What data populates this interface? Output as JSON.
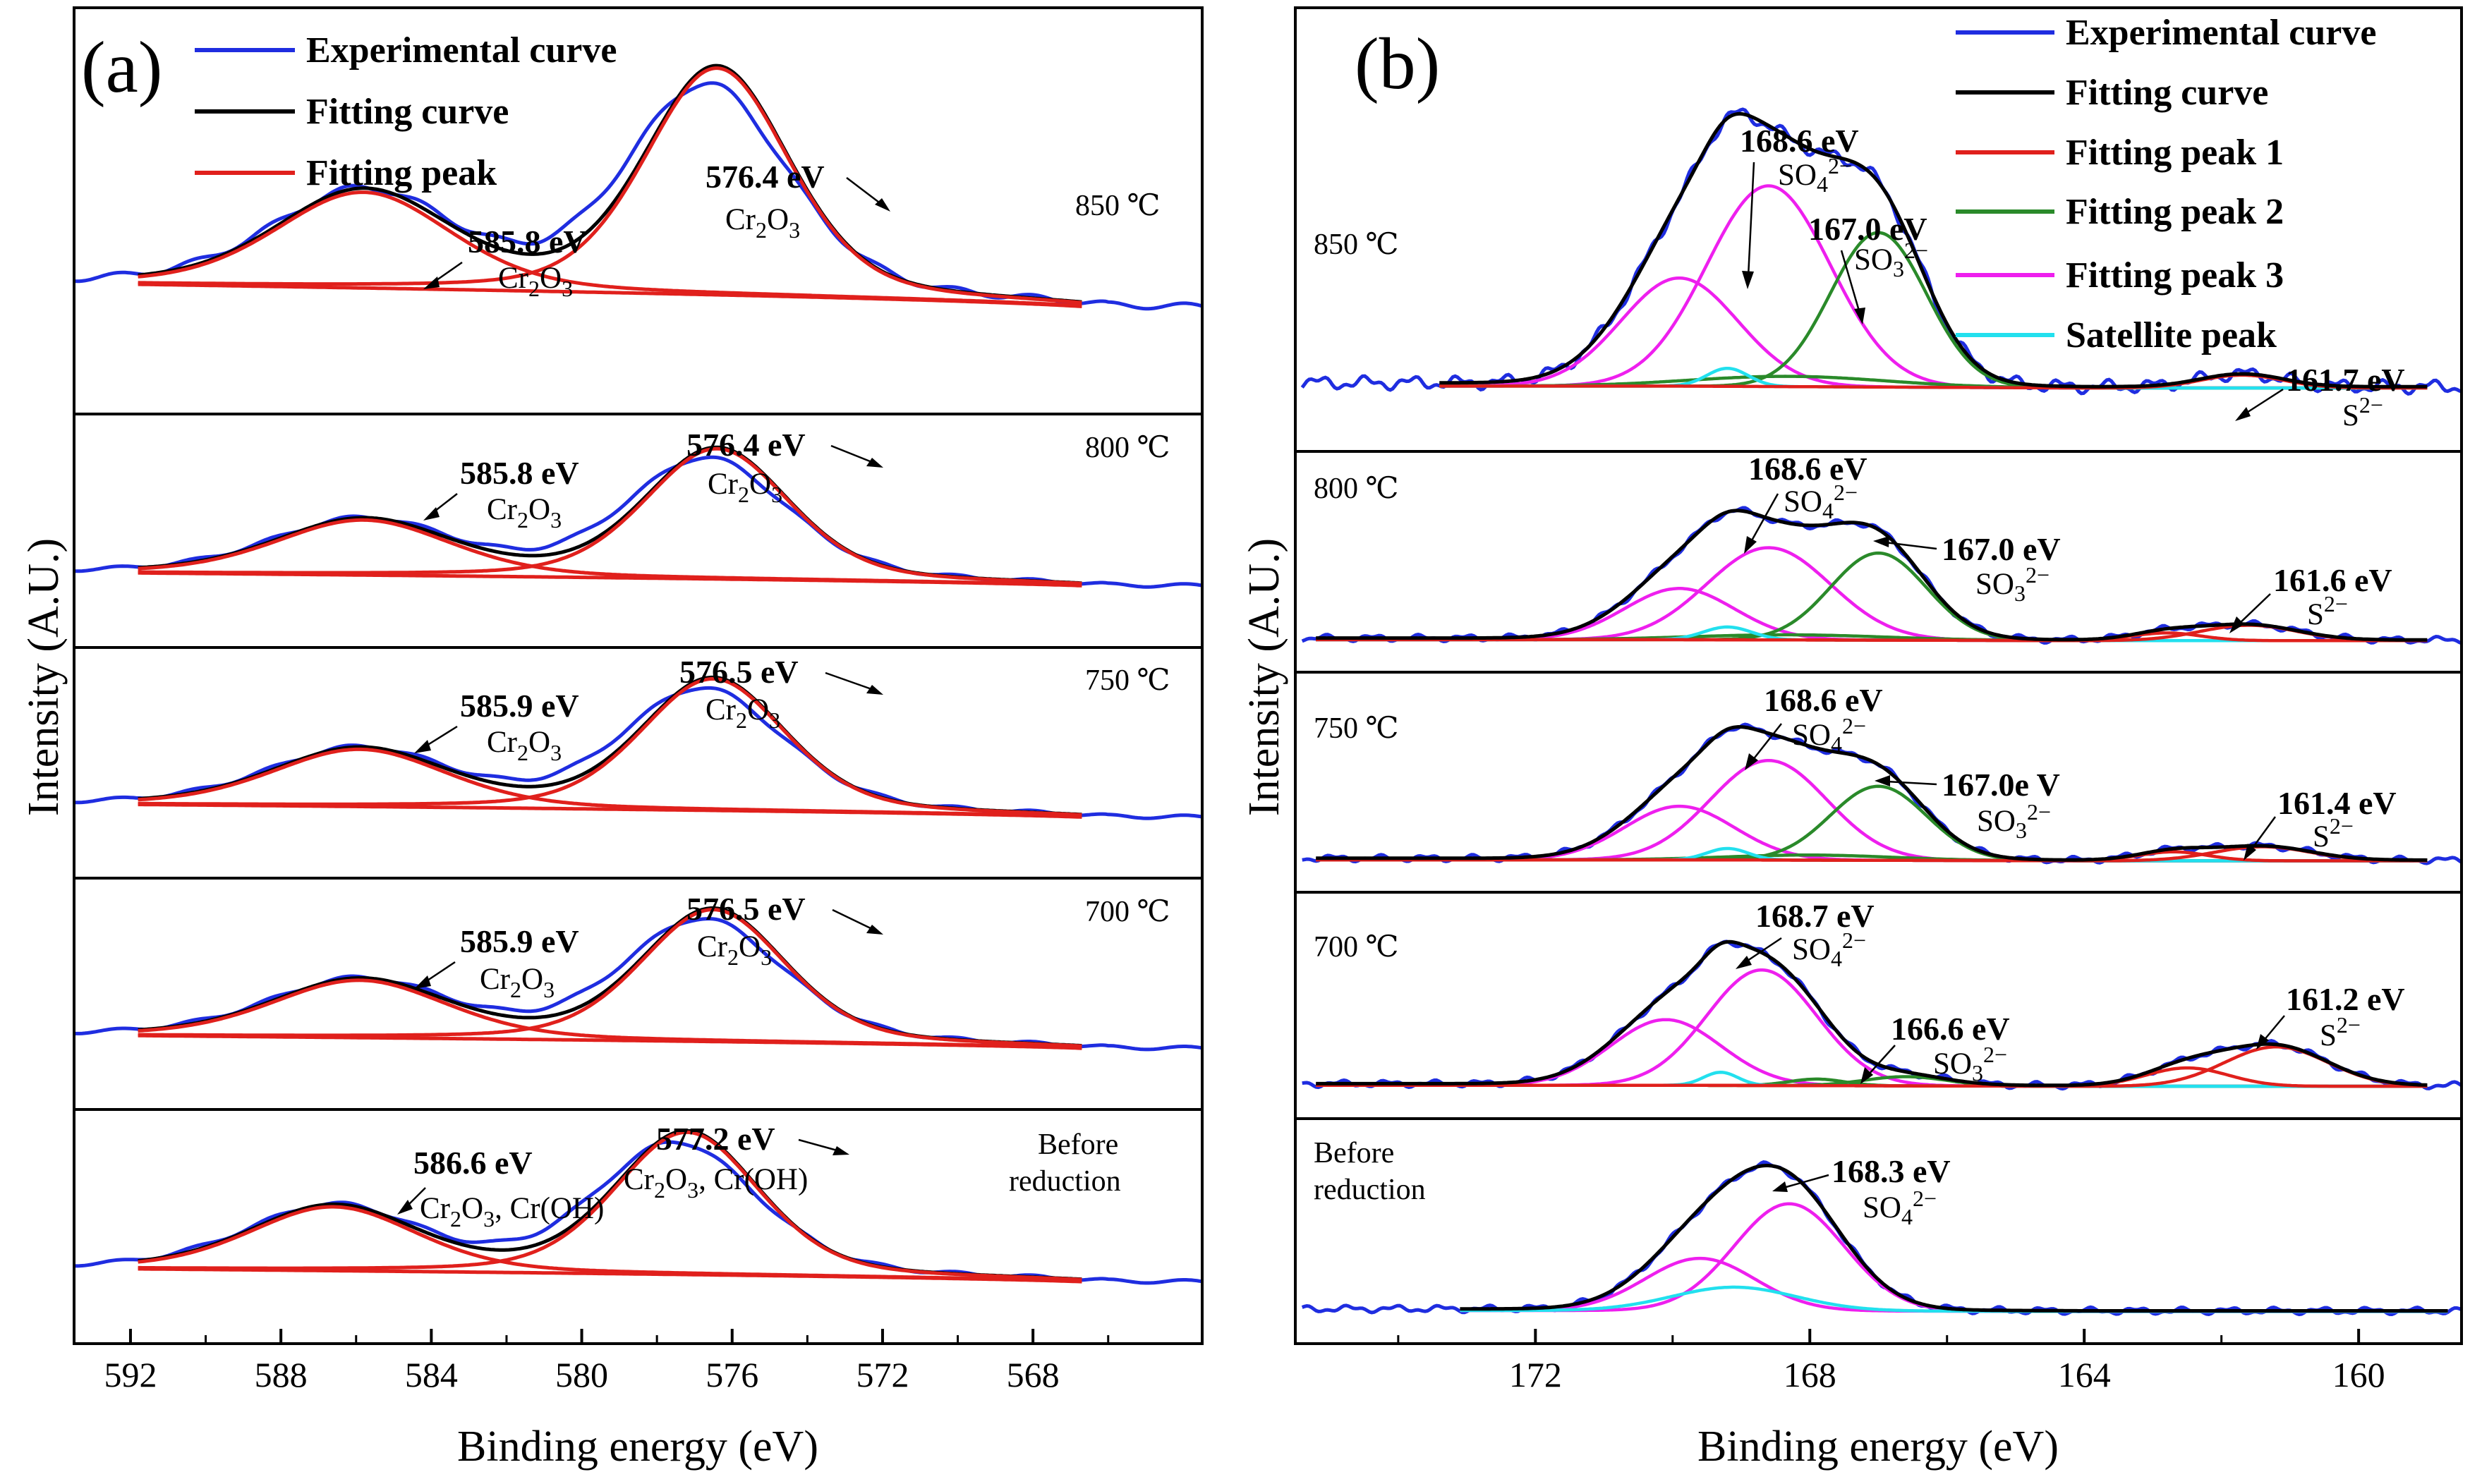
{
  "chart_data": [
    {
      "type": "line",
      "panel_label": "(a)",
      "xlabel": "Binding energy (eV)",
      "ylabel": "Intensity (A.U.)",
      "xlim": [
        593.5,
        563.5
      ],
      "xticks": [
        592,
        588,
        584,
        580,
        576,
        572,
        568
      ],
      "legend": [
        "Experimental curve",
        "Fitting curve",
        "Fitting peak"
      ],
      "colors": {
        "experimental": "#1f2de0",
        "fitting": "#000000",
        "peak": "#e0201c"
      },
      "fit_range": [
        591.8,
        566.7
      ],
      "exp_range": [
        593.5,
        563.5
      ],
      "spectra": [
        {
          "condition": "850 ℃",
          "peaks": [
            {
              "label": "585.8 eV",
              "species": "Cr2O3",
              "center": 585.8,
              "height": 0.38,
              "width": 2.3
            },
            {
              "label": "576.4 eV",
              "species": "Cr2O3",
              "center": 576.4,
              "height": 0.9,
              "width": 1.9
            }
          ],
          "exp_offset": -0.3
        },
        {
          "condition": "800 ℃",
          "peaks": [
            {
              "label": "585.8 eV",
              "species": "Cr2O3",
              "center": 585.8,
              "height": 0.38,
              "width": 2.3
            },
            {
              "label": "576.4 eV",
              "species": "Cr2O3",
              "center": 576.4,
              "height": 0.9,
              "width": 1.9
            }
          ],
          "exp_offset": -0.3
        },
        {
          "condition": "750 ℃",
          "peaks": [
            {
              "label": "585.9 eV",
              "species": "Cr2O3",
              "center": 585.9,
              "height": 0.4,
              "width": 2.3
            },
            {
              "label": "576.5 eV",
              "species": "Cr2O3",
              "center": 576.5,
              "height": 0.92,
              "width": 1.9
            }
          ],
          "exp_offset": -0.3
        },
        {
          "condition": "700 ℃",
          "peaks": [
            {
              "label": "585.9 eV",
              "species": "Cr2O3",
              "center": 585.9,
              "height": 0.4,
              "width": 2.3
            },
            {
              "label": "576.5 eV",
              "species": "Cr2O3",
              "center": 576.5,
              "height": 0.92,
              "width": 1.9
            }
          ],
          "exp_offset": -0.3
        },
        {
          "condition": "Before reduction",
          "peaks": [
            {
              "label": "586.6 eV",
              "species": "Cr2O3, Cr(OH)",
              "center": 586.6,
              "height": 0.44,
              "width": 2.2
            },
            {
              "label": "577.2 eV",
              "species": "Cr2O3, Cr(OH)",
              "center": 577.2,
              "height": 0.98,
              "width": 1.9
            }
          ],
          "exp_offset": -0.3
        }
      ]
    },
    {
      "type": "line",
      "panel_label": "(b)",
      "xlabel": "Binding energy (eV)",
      "ylabel": "Intensity (A.U.)",
      "xlim": [
        175.5,
        158.5
      ],
      "xticks": [
        172,
        168,
        164,
        160
      ],
      "legend": [
        "Experimental curve",
        "Fitting curve",
        "Fitting peak 1",
        "Fitting peak 2",
        "Fitting peak 3",
        "Satellite peak"
      ],
      "colors": {
        "experimental": "#1f2de0",
        "fitting": "#000000",
        "peak1": "#e0201c",
        "peak2": "#2a8a2a",
        "peak3": "#ee1fee",
        "satellite": "#22e0ee"
      },
      "spectra": [
        {
          "condition": "850 ℃",
          "fit_range": [
            173.4,
            159.0
          ],
          "peaks": [
            {
              "type": "peak3",
              "center": 168.6,
              "height": 0.78,
              "width": 0.9
            },
            {
              "type": "peak3",
              "center": 169.9,
              "height": 0.42,
              "width": 0.85
            },
            {
              "type": "peak2",
              "center": 167.0,
              "height": 0.6,
              "width": 0.7
            },
            {
              "type": "peak2",
              "center": 168.3,
              "height": 0.04,
              "width": 1.4
            },
            {
              "type": "satellite",
              "center": 169.2,
              "height": 0.07,
              "width": 0.3
            },
            {
              "type": "peak1",
              "center": 161.7,
              "height": 0.05,
              "width": 0.6
            }
          ],
          "annotations": [
            {
              "label": "168.6 eV",
              "species": "SO4 2−"
            },
            {
              "label": "167.0 eV",
              "species": "SO3 2−"
            },
            {
              "label": "161.7 eV",
              "species": "S2−"
            }
          ]
        },
        {
          "condition": "800 ℃",
          "fit_range": [
            175.2,
            159.0
          ],
          "peaks": [
            {
              "type": "peak3",
              "center": 168.6,
              "height": 0.72,
              "width": 0.9
            },
            {
              "type": "peak3",
              "center": 169.9,
              "height": 0.4,
              "width": 0.8
            },
            {
              "type": "peak2",
              "center": 167.0,
              "height": 0.68,
              "width": 0.7
            },
            {
              "type": "peak2",
              "center": 168.3,
              "height": 0.04,
              "width": 1.4
            },
            {
              "type": "satellite",
              "center": 169.2,
              "height": 0.1,
              "width": 0.35
            },
            {
              "type": "peak1",
              "center": 161.6,
              "height": 0.12,
              "width": 0.7
            },
            {
              "type": "peak1",
              "center": 162.8,
              "height": 0.06,
              "width": 0.5
            }
          ],
          "annotations": [
            {
              "label": "168.6 eV",
              "species": "SO4 2−"
            },
            {
              "label": "167.0 eV",
              "species": "SO3 2−"
            },
            {
              "label": "161.6 eV",
              "species": "S2−"
            }
          ]
        },
        {
          "condition": "750 ℃",
          "fit_range": [
            175.2,
            159.0
          ],
          "peaks": [
            {
              "type": "peak3",
              "center": 168.6,
              "height": 0.78,
              "width": 0.85
            },
            {
              "type": "peak3",
              "center": 169.9,
              "height": 0.42,
              "width": 0.8
            },
            {
              "type": "peak2",
              "center": 167.0,
              "height": 0.58,
              "width": 0.7
            },
            {
              "type": "peak2",
              "center": 168.0,
              "height": 0.04,
              "width": 1.2
            },
            {
              "type": "satellite",
              "center": 169.2,
              "height": 0.09,
              "width": 0.3
            },
            {
              "type": "peak1",
              "center": 161.4,
              "height": 0.11,
              "width": 0.7
            },
            {
              "type": "peak1",
              "center": 162.7,
              "height": 0.07,
              "width": 0.5
            }
          ],
          "annotations": [
            {
              "label": "168.6 eV",
              "species": "SO4 2−"
            },
            {
              "label": "167.0e V",
              "species": "SO3 2−"
            },
            {
              "label": "161.4 eV",
              "species": "S2−"
            }
          ]
        },
        {
          "condition": "700 ℃",
          "fit_range": [
            175.2,
            159.0
          ],
          "peaks": [
            {
              "type": "peak3",
              "center": 168.7,
              "height": 0.88,
              "width": 0.8
            },
            {
              "type": "peak3",
              "center": 170.1,
              "height": 0.5,
              "width": 0.8
            },
            {
              "type": "peak2",
              "center": 166.6,
              "height": 0.07,
              "width": 0.6
            },
            {
              "type": "peak2",
              "center": 167.9,
              "height": 0.05,
              "width": 0.4
            },
            {
              "type": "satellite",
              "center": 169.3,
              "height": 0.1,
              "width": 0.25
            },
            {
              "type": "peak1",
              "center": 161.2,
              "height": 0.3,
              "width": 0.75
            },
            {
              "type": "peak1",
              "center": 162.5,
              "height": 0.14,
              "width": 0.6
            }
          ],
          "annotations": [
            {
              "label": "168.7 eV",
              "species": "SO4 2−"
            },
            {
              "label": "166.6 eV",
              "species": "SO3 2−"
            },
            {
              "label": "161.2 eV",
              "species": "S2−"
            }
          ]
        },
        {
          "condition": "Before reduction",
          "fit_range": [
            173.1,
            158.7
          ],
          "peaks": [
            {
              "type": "peak3",
              "center": 168.3,
              "height": 0.82,
              "width": 0.8
            },
            {
              "type": "peak3",
              "center": 169.6,
              "height": 0.4,
              "width": 0.8
            },
            {
              "type": "satellite",
              "center": 169.1,
              "height": 0.18,
              "width": 0.9
            }
          ],
          "annotations": [
            {
              "label": "168.3 eV",
              "species": "SO4 2−"
            }
          ]
        }
      ]
    }
  ],
  "text": {
    "a": {
      "panel": "(a)",
      "legend": [
        "Experimental curve",
        "Fitting curve",
        "Fitting peak"
      ],
      "ylabel": "Intensity (A.U.)",
      "xlabel": "Binding energy (eV)",
      "ticks": [
        "592",
        "588",
        "584",
        "580",
        "576",
        "572",
        "568"
      ],
      "s0": {
        "temp": "850 ℃",
        "pk1": "585.8 eV",
        "pk2": "576.4 eV"
      },
      "s1": {
        "temp": "800 ℃",
        "pk1": "585.8 eV",
        "pk2": "576.4 eV"
      },
      "s2": {
        "temp": "750 ℃",
        "pk1": "585.9 eV",
        "pk2": "576.5 eV"
      },
      "s3": {
        "temp": "700 ℃",
        "pk1": "585.9 eV",
        "pk2": "576.5 eV"
      },
      "s4": {
        "temp1": "Before",
        "temp2": "reduction",
        "pk1": "586.6 eV",
        "pk2": "577.2 eV",
        "sp_tail": ", Cr(OH)"
      },
      "species_base": "Cr",
      "species_mid": "O",
      "sub2": "2",
      "sub3": "3"
    },
    "b": {
      "panel": "(b)",
      "legend": [
        "Experimental curve",
        "Fitting curve",
        "Fitting peak 1",
        "Fitting peak 2",
        "Fitting peak 3",
        "Satellite peak"
      ],
      "ylabel": "Intensity (A.U.)",
      "xlabel": "Binding energy (eV)",
      "ticks": [
        "172",
        "168",
        "164",
        "160"
      ],
      "s0": {
        "temp": "850 ℃",
        "a1": "168.6 eV",
        "a2": "167.0 eV",
        "a3": "161.7 eV"
      },
      "s1": {
        "temp": "800 ℃",
        "a1": "168.6 eV",
        "a2": "167.0 eV",
        "a3": "161.6 eV"
      },
      "s2": {
        "temp": "750 ℃",
        "a1": "168.6 eV",
        "a2": "167.0e V",
        "a3": "161.4 eV"
      },
      "s3": {
        "temp": "700 ℃",
        "a1": "168.7 eV",
        "a2": "166.6 eV",
        "a3": "161.2 eV"
      },
      "s4": {
        "temp1": "Before",
        "temp2": "reduction",
        "a1": "168.3 eV"
      },
      "so4": "SO",
      "so3": "SO",
      "sub4": "4",
      "sub3": "3",
      "charge": "2−",
      "s": "S"
    }
  }
}
